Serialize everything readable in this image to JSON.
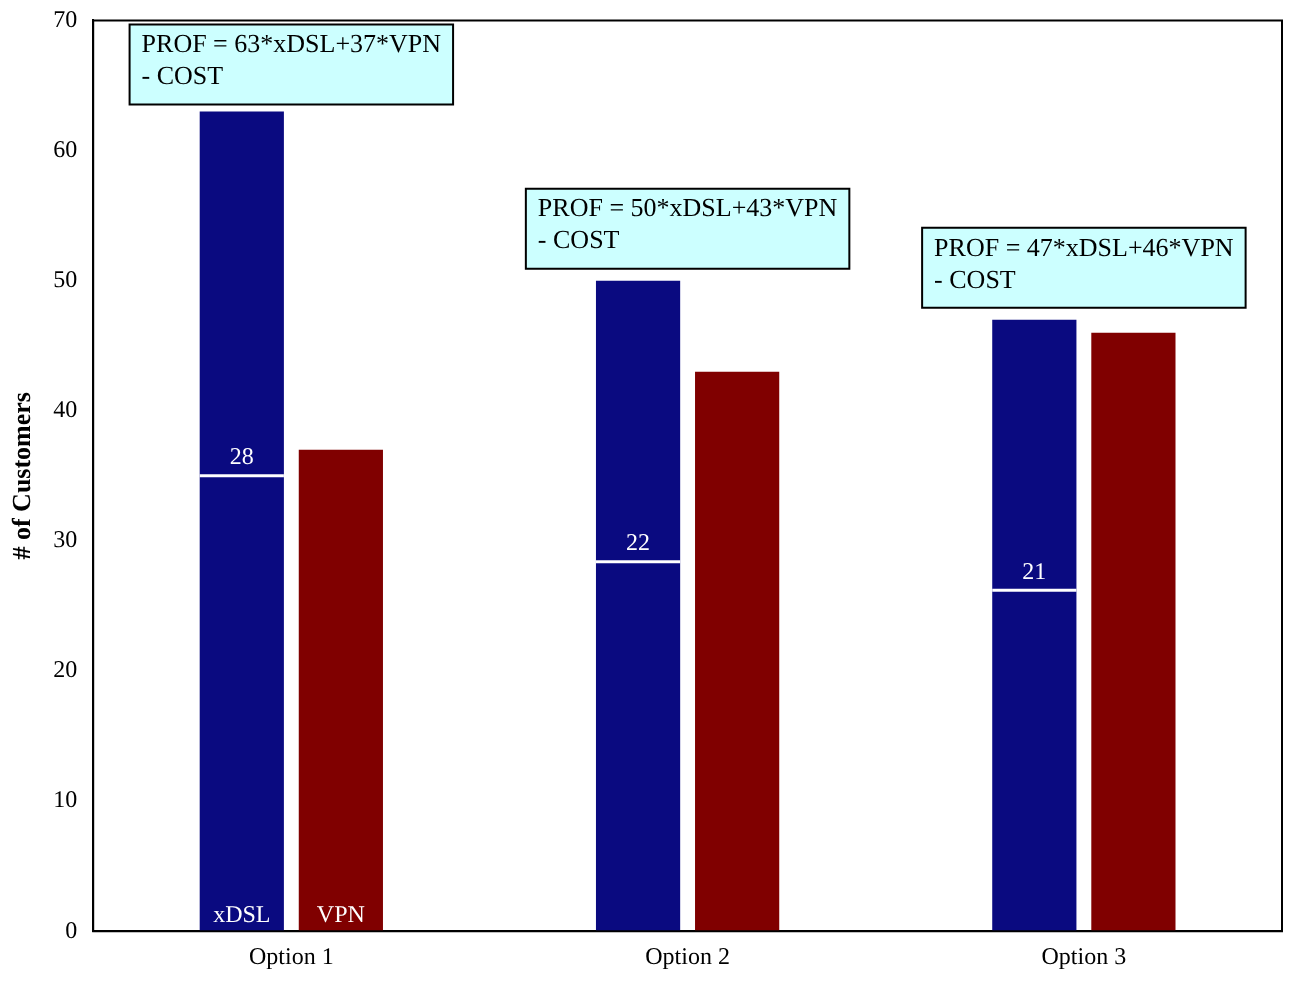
{
  "chart_data": {
    "type": "bar",
    "ylabel": "# of Customers",
    "categories": [
      "Option 1",
      "Option 2",
      "Option 3"
    ],
    "series": [
      {
        "name": "xDSL",
        "color": "#0a0a80",
        "values": [
          63,
          50,
          47
        ]
      },
      {
        "name": "VPN",
        "color": "#800000",
        "values": [
          37,
          43,
          46
        ]
      }
    ],
    "ylim": [
      0,
      70
    ],
    "yticks": [
      0,
      10,
      20,
      30,
      40,
      50,
      60,
      70
    ],
    "grid": false,
    "legend": false,
    "annotations": [
      "PROF = 63*xDSL+37*VPN\n- COST",
      "PROF = 50*xDSL+43*VPN\n- COST",
      "PROF = 47*xDSL+46*VPN\n- COST",
      {
        "text": "28",
        "x": "Option 1",
        "y": 35
      },
      {
        "text": "22",
        "x": "Option 2",
        "y": 28.4
      },
      {
        "text": "21",
        "x": "Option 3",
        "y": 26.2
      }
    ]
  }
}
